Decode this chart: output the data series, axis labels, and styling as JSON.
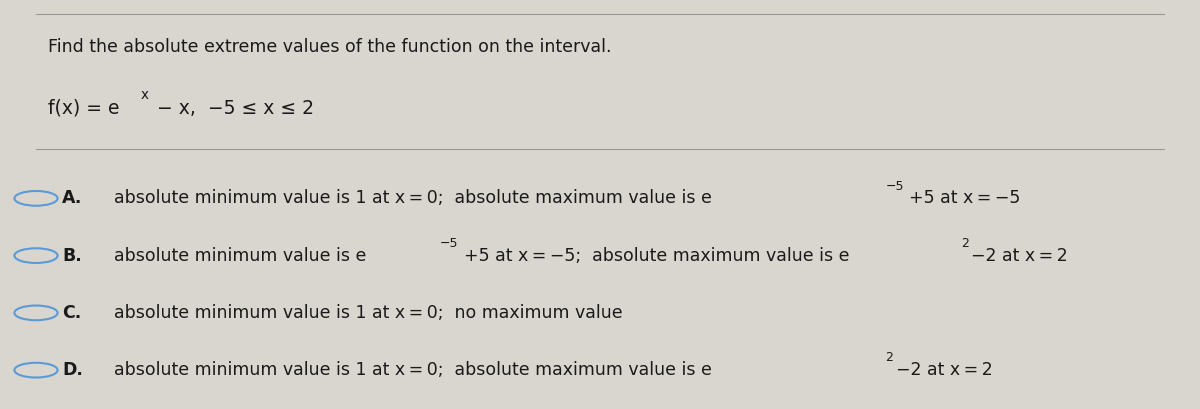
{
  "background_color": "#c8c5be",
  "inner_bg": "#d9d6cf",
  "title_text": "Find the absolute extreme values of the function on the interval.",
  "options": [
    {
      "letter": "A.",
      "line1": "absolute minimum value is 1 at x = 0;  absolute maximum value is e",
      "sup1": "−5",
      "line2": "+5 at x = −5",
      "sup2": null,
      "line3": null
    },
    {
      "letter": "B.",
      "line1": "absolute minimum value is e",
      "sup1": "−5",
      "line2": "+5 at x = −5;  absolute maximum value is e",
      "sup2": "2",
      "line3": "−2 at x = 2"
    },
    {
      "letter": "C.",
      "line1": "absolute minimum value is 1 at x = 0;  no maximum value",
      "sup1": null,
      "line2": null,
      "sup2": null,
      "line3": null
    },
    {
      "letter": "D.",
      "line1": "absolute minimum value is 1 at x = 0;  absolute maximum value is e",
      "sup1": "2",
      "line2": "−2 at x = 2",
      "sup2": null,
      "line3": null
    }
  ],
  "font_size_title": 12.5,
  "font_size_function": 13.5,
  "font_size_options": 12.5,
  "text_color": "#1a1a1a",
  "circle_color": "#5b9bd5"
}
